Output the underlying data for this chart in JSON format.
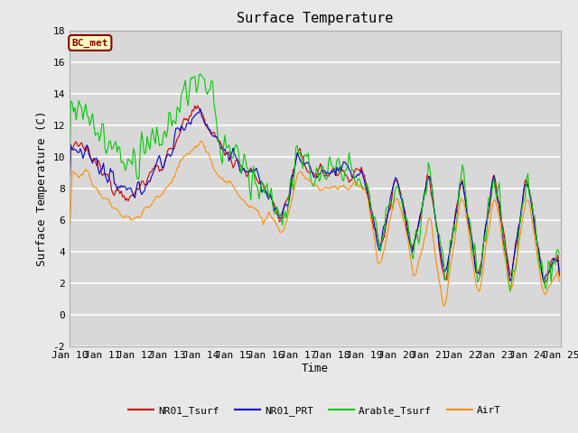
{
  "title": "Surface Temperature",
  "xlabel": "Time",
  "ylabel": "Surface Temperature (C)",
  "ylim": [
    -2,
    18
  ],
  "yticks": [
    -2,
    0,
    2,
    4,
    6,
    8,
    10,
    12,
    14,
    16,
    18
  ],
  "xtick_labels": [
    "Jan 10",
    "Jan 11",
    "Jan 12",
    "Jan 13",
    "Jan 14",
    "Jan 15",
    "Jan 16",
    "Jan 17",
    "Jan 18",
    "Jan 19",
    "Jan 20",
    "Jan 21",
    "Jan 22",
    "Jan 23",
    "Jan 24",
    "Jan 25"
  ],
  "station_label": "BC_met",
  "legend_entries": [
    "NR01_Tsurf",
    "NR01_PRT",
    "Arable_Tsurf",
    "AirT"
  ],
  "line_colors": [
    "#cc0000",
    "#0000cc",
    "#00cc00",
    "#ff8c00"
  ],
  "bg_color": "#e8e8e8",
  "plot_bg_color": "#d8d8d8",
  "grid_color": "#ffffff",
  "title_fontsize": 11,
  "label_fontsize": 9,
  "tick_fontsize": 8,
  "n_days": 15,
  "n_per_day": 24
}
